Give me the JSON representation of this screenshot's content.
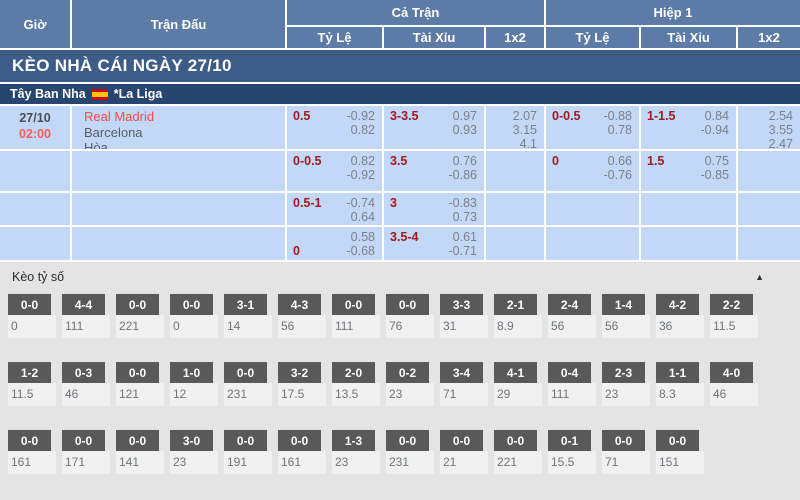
{
  "colors": {
    "header_blue": "#5d7ba7",
    "banner_blue": "#3d5c87",
    "league_navy": "#26466f",
    "cell_blue": "#c3d7f7",
    "handicap_red": "#9e1b20",
    "time_red": "#fd5c5c",
    "home_team_red": "#ef4d4a",
    "score_box_gray": "#595959",
    "section_bg": "#e4e4e4"
  },
  "table": {
    "col_time": "Giờ",
    "col_match": "Trận Đấu",
    "col_full": "Cả Trận",
    "col_half": "Hiệp 1",
    "col_handicap": "Tỷ Lệ",
    "col_ou": "Tài Xỉu",
    "col_1x2": "1x2"
  },
  "banner": {
    "title": "KÈO NHÀ CÁI NGÀY 27/10"
  },
  "league": {
    "country": "Tây Ban Nha",
    "name": "*La Liga",
    "flag": "spain"
  },
  "match": {
    "date": "27/10",
    "time": "02:00",
    "home": "Real Madrid",
    "away": "Barcelona",
    "draw": "Hòa"
  },
  "odds_rows": [
    {
      "ft_hdc": {
        "line": "0.5",
        "line_row": 0,
        "vals": [
          "-0.92",
          "0.82"
        ]
      },
      "ft_ou": {
        "line": "3-3.5",
        "line_row": 0,
        "vals": [
          "0.97",
          "0.93"
        ]
      },
      "ft_1x2": [
        "2.07",
        "3.15",
        "4.1"
      ],
      "h1_hdc": {
        "line": "0-0.5",
        "line_row": 0,
        "vals": [
          "-0.88",
          "0.78"
        ]
      },
      "h1_ou": {
        "line": "1-1.5",
        "line_row": 0,
        "vals": [
          "0.84",
          "-0.94"
        ]
      },
      "h1_1x2": [
        "2.54",
        "3.55",
        "2.47"
      ]
    },
    {
      "ft_hdc": {
        "line": "0-0.5",
        "line_row": 0,
        "vals": [
          "0.82",
          "-0.92"
        ]
      },
      "ft_ou": {
        "line": "3.5",
        "line_row": 0,
        "vals": [
          "0.76",
          "-0.86"
        ]
      },
      "ft_1x2": [],
      "h1_hdc": {
        "line": "0",
        "line_row": 0,
        "vals": [
          "0.66",
          "-0.76"
        ]
      },
      "h1_ou": {
        "line": "1.5",
        "line_row": 0,
        "vals": [
          "0.75",
          "-0.85"
        ]
      },
      "h1_1x2": []
    },
    {
      "ft_hdc": {
        "line": "0.5-1",
        "line_row": 0,
        "vals": [
          "-0.74",
          "0.64"
        ]
      },
      "ft_ou": {
        "line": "3",
        "line_row": 0,
        "vals": [
          "-0.83",
          "0.73"
        ]
      },
      "ft_1x2": [],
      "h1_hdc": null,
      "h1_ou": null,
      "h1_1x2": []
    },
    {
      "ft_hdc": {
        "line": "0",
        "line_row": 1,
        "vals": [
          "0.58",
          "-0.68"
        ]
      },
      "ft_ou": {
        "line": "3.5-4",
        "line_row": 0,
        "vals": [
          "0.61",
          "-0.71"
        ]
      },
      "ft_1x2": [],
      "h1_hdc": null,
      "h1_ou": null,
      "h1_1x2": []
    }
  ],
  "score_section": {
    "title": "Kèo tỷ số",
    "collapse_icon": "▲",
    "rows": [
      [
        {
          "score": "0-0",
          "odds": "0"
        },
        {
          "score": "4-4",
          "odds": "111"
        },
        {
          "score": "0-0",
          "odds": "221"
        },
        {
          "score": "0-0",
          "odds": "0"
        },
        {
          "score": "3-1",
          "odds": "14"
        },
        {
          "score": "4-3",
          "odds": "56"
        },
        {
          "score": "0-0",
          "odds": "111"
        },
        {
          "score": "0-0",
          "odds": "76"
        },
        {
          "score": "3-3",
          "odds": "31"
        },
        {
          "score": "2-1",
          "odds": "8.9"
        },
        {
          "score": "2-4",
          "odds": "56"
        },
        {
          "score": "1-4",
          "odds": "56"
        },
        {
          "score": "4-2",
          "odds": "36"
        },
        {
          "score": "2-2",
          "odds": "11.5"
        }
      ],
      [
        {
          "score": "1-2",
          "odds": "11.5"
        },
        {
          "score": "0-3",
          "odds": "46"
        },
        {
          "score": "0-0",
          "odds": "121"
        },
        {
          "score": "1-0",
          "odds": "12"
        },
        {
          "score": "0-0",
          "odds": "231"
        },
        {
          "score": "3-2",
          "odds": "17.5"
        },
        {
          "score": "2-0",
          "odds": "13.5"
        },
        {
          "score": "0-2",
          "odds": "23"
        },
        {
          "score": "3-4",
          "odds": "71"
        },
        {
          "score": "4-1",
          "odds": "29"
        },
        {
          "score": "0-4",
          "odds": "111"
        },
        {
          "score": "2-3",
          "odds": "23"
        },
        {
          "score": "1-1",
          "odds": "8.3"
        },
        {
          "score": "4-0",
          "odds": "46"
        }
      ],
      [
        {
          "score": "0-0",
          "odds": "161"
        },
        {
          "score": "0-0",
          "odds": "171"
        },
        {
          "score": "0-0",
          "odds": "141"
        },
        {
          "score": "3-0",
          "odds": "23"
        },
        {
          "score": "0-0",
          "odds": "191"
        },
        {
          "score": "0-0",
          "odds": "161"
        },
        {
          "score": "1-3",
          "odds": "23"
        },
        {
          "score": "0-0",
          "odds": "231"
        },
        {
          "score": "0-0",
          "odds": "21"
        },
        {
          "score": "0-0",
          "odds": "221"
        },
        {
          "score": "0-1",
          "odds": "15.5"
        },
        {
          "score": "0-0",
          "odds": "71"
        },
        {
          "score": "0-0",
          "odds": "151"
        }
      ]
    ]
  }
}
